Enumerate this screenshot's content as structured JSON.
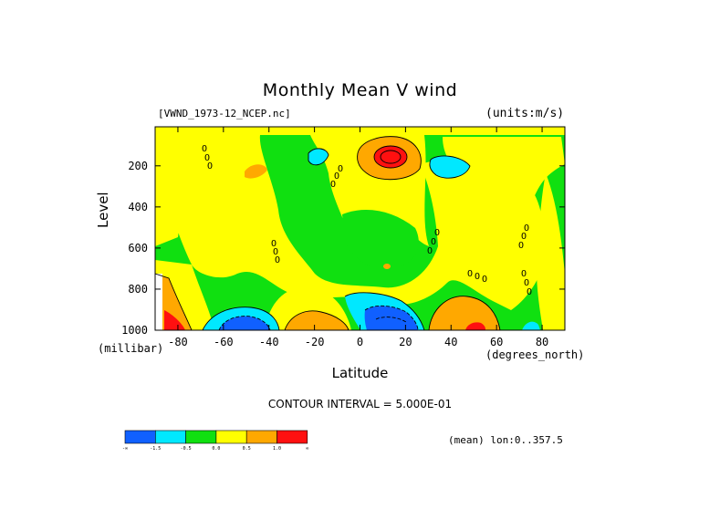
{
  "chart_data": {
    "type": "contour",
    "title": "Monthly Mean V wind",
    "dataset_label": "[VWND_1973-12_NCEP.nc]",
    "units_label": "(units:m/s)",
    "xlabel": "Latitude",
    "x_unit_label": "(degrees_north)",
    "ylabel": "Level",
    "y_unit_label": "(millibar)",
    "xlim": [
      -90,
      90
    ],
    "ylim": [
      1000,
      10
    ],
    "x_ticks": [
      -80,
      -60,
      -40,
      -20,
      0,
      20,
      40,
      60,
      80
    ],
    "y_ticks": [
      200,
      400,
      600,
      800,
      1000
    ],
    "contour_interval_label": "CONTOUR INTERVAL = 5.000E-01",
    "mean_label": "(mean) lon:0..357.5",
    "colorbar": {
      "levels": [
        "-∞",
        "-1.5",
        "-0.5",
        "0.0",
        "0.5",
        "1.0",
        "∞"
      ],
      "colors": [
        "#1060ff",
        "#00e8ff",
        "#10e010",
        "#ffff00",
        "#ffa800",
        "#ff1010"
      ]
    },
    "features": [
      {
        "lat": 13,
        "lev": 150,
        "sign": "positive max"
      },
      {
        "lat": 33,
        "lev": 175,
        "sign": "negative"
      },
      {
        "lat": -20,
        "lev": 170,
        "sign": "negative"
      },
      {
        "lat": 12,
        "lev": 970,
        "sign": "negative min"
      },
      {
        "lat": -52,
        "lev": 980,
        "sign": "negative min"
      },
      {
        "lat": -20,
        "lev": 985,
        "sign": "positive"
      },
      {
        "lat": 47,
        "lev": 975,
        "sign": "positive"
      },
      {
        "lat": -88,
        "lev": 980,
        "sign": "positive max"
      }
    ]
  }
}
